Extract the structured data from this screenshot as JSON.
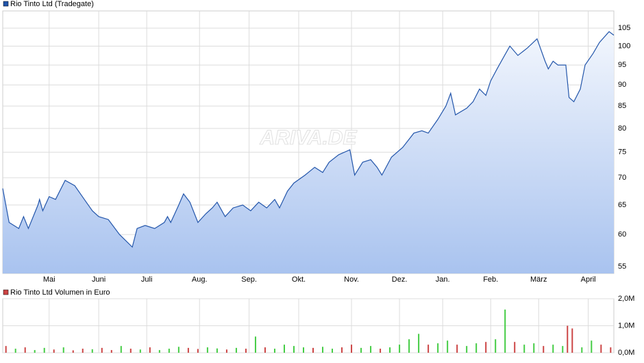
{
  "chart_data": [
    {
      "type": "area",
      "title": "Rio Tinto Ltd (Tradegate)",
      "watermark": "ARIVA.DE",
      "color": "#2255aa",
      "log_scale": true,
      "grid": true,
      "x": [
        0,
        4,
        10,
        13,
        16,
        22,
        23,
        25,
        29,
        33,
        39,
        45,
        51,
        56,
        60,
        66,
        73,
        81,
        84,
        89,
        95,
        101,
        103,
        105,
        110,
        113,
        117,
        122,
        127,
        131,
        134,
        139,
        144,
        150,
        155,
        160,
        165,
        170,
        173,
        178,
        182,
        189,
        195,
        200,
        204,
        210,
        217,
        220,
        225,
        230,
        234,
        237,
        243,
        250,
        257,
        262,
        266,
        272,
        277,
        280,
        283,
        290,
        294,
        298,
        302,
        305,
        309,
        313,
        317,
        322,
        328,
        334,
        339,
        341,
        344,
        347,
        352,
        354,
        357,
        361,
        364,
        369,
        373,
        379,
        382
      ],
      "values": [
        68,
        62,
        61,
        63,
        61,
        65,
        66,
        64,
        66.5,
        66,
        69.5,
        68.5,
        66,
        64,
        63,
        62.5,
        60,
        58,
        61,
        61.5,
        61,
        62,
        63,
        62,
        65,
        67,
        65.5,
        62,
        63.5,
        64.5,
        65.5,
        63,
        64.5,
        65,
        64,
        65.5,
        64.5,
        66,
        64.5,
        67.5,
        69,
        70.5,
        72,
        71,
        73,
        74.5,
        75.5,
        70.5,
        73,
        73.5,
        72,
        70.5,
        74,
        76,
        79,
        79.5,
        79,
        82,
        85,
        88,
        83,
        84.5,
        86,
        89,
        87.5,
        91,
        94,
        97,
        100,
        97.5,
        99.5,
        102,
        96,
        94,
        96,
        95,
        95,
        87,
        86,
        89,
        95,
        98,
        101,
        104,
        103
      ],
      "xlim": [
        0,
        382
      ],
      "ylim": [
        54,
        110
      ],
      "xticks": [
        {
          "value": 29,
          "label": "Mai"
        },
        {
          "value": 60,
          "label": "Juni"
        },
        {
          "value": 90,
          "label": "Juli"
        },
        {
          "value": 123,
          "label": "Aug."
        },
        {
          "value": 154,
          "label": "Sep."
        },
        {
          "value": 185,
          "label": "Okt."
        },
        {
          "value": 218,
          "label": "Nov."
        },
        {
          "value": 248,
          "label": "Dez."
        },
        {
          "value": 275,
          "label": "Jan."
        },
        {
          "value": 305,
          "label": "Feb."
        },
        {
          "value": 335,
          "label": "März"
        },
        {
          "value": 366,
          "label": "April"
        }
      ],
      "yticks": [
        55,
        60,
        65,
        70,
        75,
        80,
        85,
        90,
        95,
        100,
        105
      ]
    },
    {
      "type": "bar",
      "title": "Rio Tinto Ltd Volumen in Euro",
      "color": "#cc4444",
      "grid": true,
      "x": [
        2,
        8,
        14,
        20,
        26,
        32,
        38,
        44,
        50,
        56,
        62,
        68,
        74,
        80,
        86,
        92,
        98,
        104,
        110,
        116,
        122,
        128,
        134,
        140,
        146,
        152,
        158,
        164,
        170,
        176,
        182,
        188,
        194,
        200,
        206,
        212,
        218,
        224,
        230,
        236,
        242,
        248,
        254,
        260,
        266,
        272,
        278,
        284,
        290,
        296,
        302,
        308,
        314,
        320,
        326,
        332,
        338,
        344,
        350,
        353,
        356,
        362,
        368,
        374,
        380
      ],
      "values": [
        250000,
        150000,
        200000,
        100000,
        180000,
        120000,
        200000,
        90000,
        150000,
        130000,
        180000,
        100000,
        250000,
        150000,
        120000,
        200000,
        100000,
        150000,
        220000,
        180000,
        140000,
        200000,
        160000,
        120000,
        180000,
        150000,
        600000,
        200000,
        150000,
        300000,
        250000,
        200000,
        180000,
        220000,
        150000,
        200000,
        300000,
        180000,
        250000,
        150000,
        200000,
        300000,
        500000,
        700000,
        300000,
        350000,
        450000,
        300000,
        250000,
        350000,
        400000,
        500000,
        1600000,
        400000,
        300000,
        350000,
        250000,
        300000,
        250000,
        1000000,
        900000,
        200000,
        450000,
        300000,
        200000
      ],
      "bar_colors": [
        "#cc4444",
        "#44cc44",
        "#cc4444",
        "#44cc44",
        "#44cc44",
        "#cc4444",
        "#44cc44",
        "#cc4444",
        "#cc4444",
        "#44cc44",
        "#cc4444",
        "#cc4444",
        "#44cc44",
        "#cc4444",
        "#44cc44",
        "#cc4444",
        "#44cc44",
        "#44cc44",
        "#44cc44",
        "#cc4444",
        "#cc4444",
        "#44cc44",
        "#44cc44",
        "#cc4444",
        "#44cc44",
        "#cc4444",
        "#44cc44",
        "#cc4444",
        "#44cc44",
        "#44cc44",
        "#44cc44",
        "#44cc44",
        "#cc4444",
        "#44cc44",
        "#44cc44",
        "#cc4444",
        "#cc4444",
        "#44cc44",
        "#44cc44",
        "#cc4444",
        "#44cc44",
        "#44cc44",
        "#44cc44",
        "#44cc44",
        "#cc4444",
        "#44cc44",
        "#44cc44",
        "#cc4444",
        "#44cc44",
        "#44cc44",
        "#cc4444",
        "#44cc44",
        "#44cc44",
        "#cc4444",
        "#44cc44",
        "#44cc44",
        "#cc4444",
        "#44cc44",
        "#44cc44",
        "#cc4444",
        "#cc4444",
        "#44cc44",
        "#44cc44",
        "#cc4444",
        "#cc4444"
      ],
      "xlim": [
        0,
        382
      ],
      "ylim": [
        0,
        2000000
      ],
      "yticks": [
        {
          "value": 0,
          "label": "0,0M"
        },
        {
          "value": 1000000,
          "label": "1,0M"
        },
        {
          "value": 2000000,
          "label": "2,0M"
        }
      ]
    }
  ]
}
